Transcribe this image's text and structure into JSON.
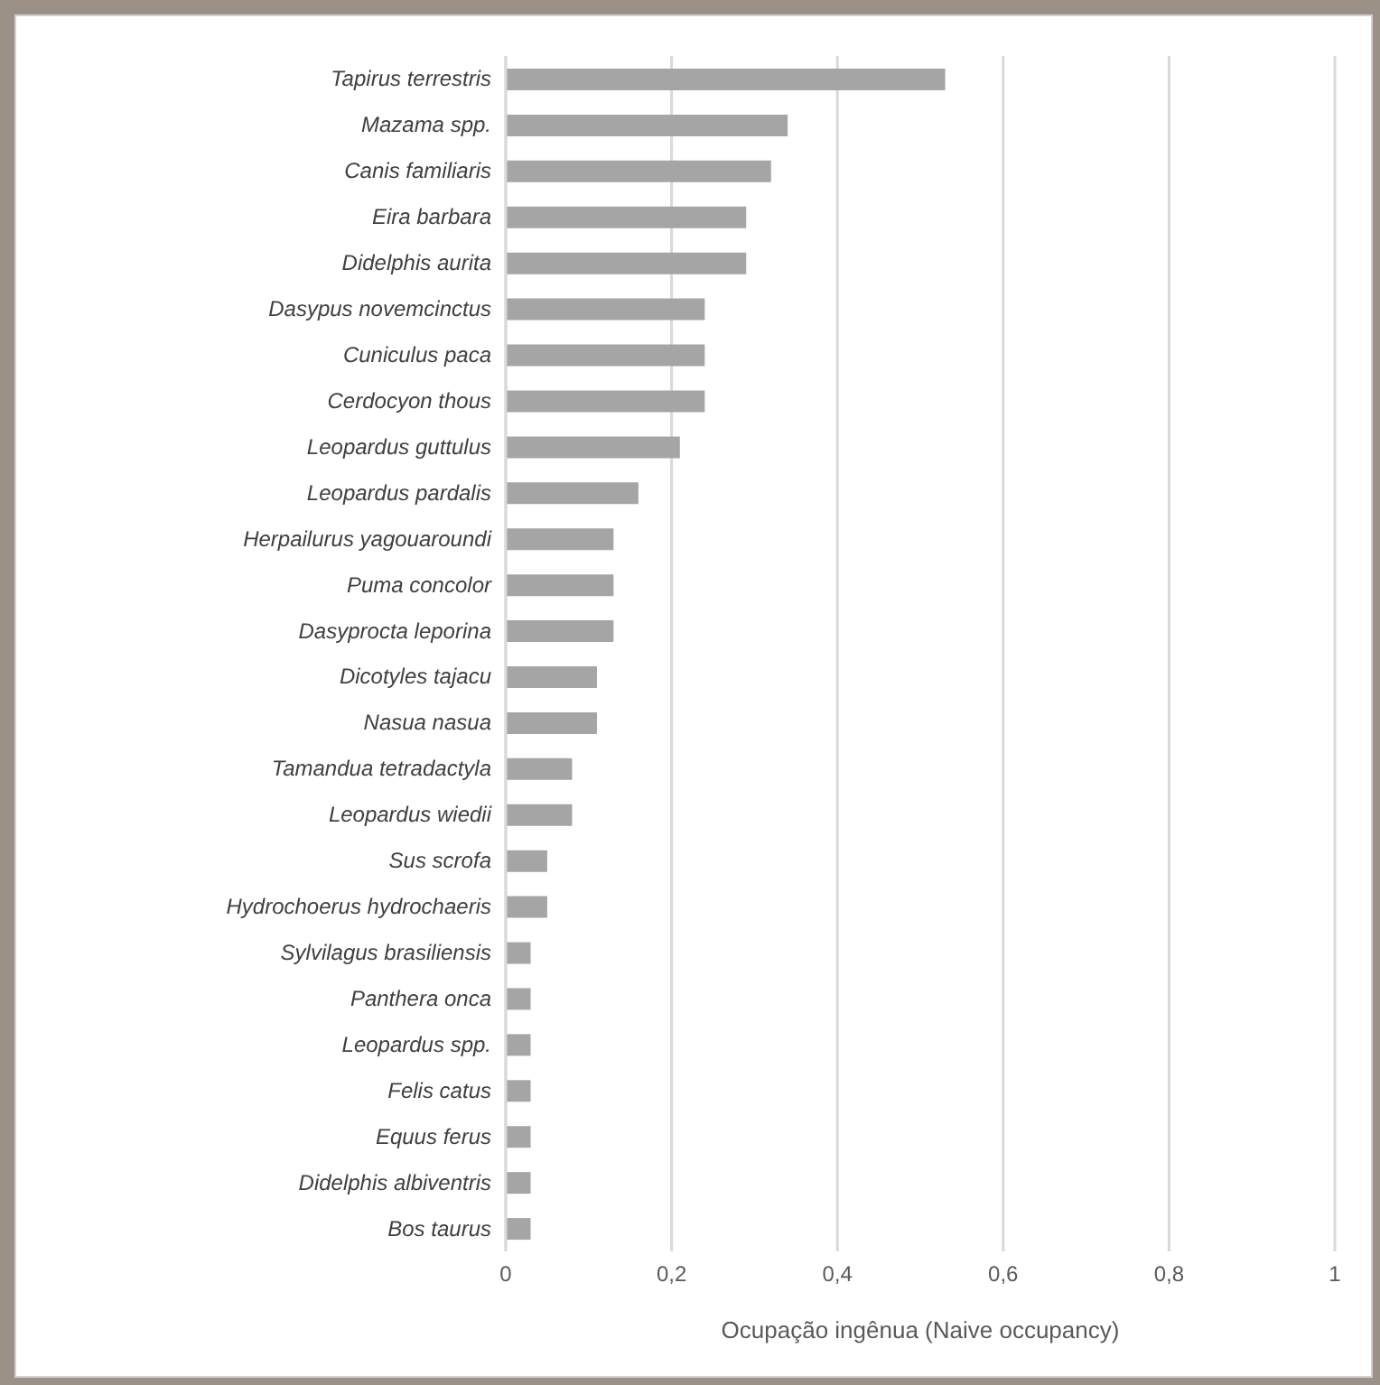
{
  "chart_data": {
    "type": "bar",
    "orientation": "horizontal",
    "xlabel": "Ocupação ingênua (Naive occupancy)",
    "categories": [
      "Tapirus terrestris",
      "Mazama spp.",
      "Canis familiaris",
      "Eira barbara",
      "Didelphis aurita",
      "Dasypus novemcinctus",
      "Cuniculus paca",
      "Cerdocyon thous",
      "Leopardus guttulus",
      "Leopardus pardalis",
      "Herpailurus yagouaroundi",
      "Puma concolor",
      "Dasyprocta leporina",
      "Dicotyles tajacu",
      "Nasua nasua",
      "Tamandua tetradactyla",
      "Leopardus wiedii",
      "Sus scrofa",
      "Hydrochoerus hydrochaeris",
      "Sylvilagus brasiliensis",
      "Panthera onca",
      "Leopardus spp.",
      "Felis catus",
      "Equus ferus",
      "Didelphis albiventris",
      "Bos taurus"
    ],
    "values": [
      0.53,
      0.34,
      0.32,
      0.29,
      0.29,
      0.24,
      0.24,
      0.24,
      0.21,
      0.16,
      0.13,
      0.13,
      0.13,
      0.11,
      0.11,
      0.08,
      0.08,
      0.05,
      0.05,
      0.03,
      0.03,
      0.03,
      0.03,
      0.03,
      0.03,
      0.03
    ],
    "color": "#a5a5a5",
    "xlim": [
      0,
      1
    ],
    "xticks": [
      0,
      {
        "value": 0.2,
        "label": "0,2"
      },
      {
        "value": 0.4,
        "label": "0,4"
      },
      {
        "value": 0.6,
        "label": "0,6"
      },
      {
        "value": 0.8,
        "label": "0,8"
      },
      1
    ],
    "grid": "x"
  }
}
